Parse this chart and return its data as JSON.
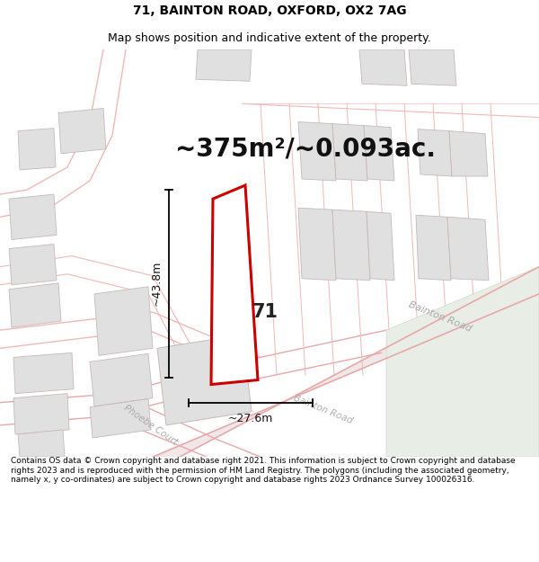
{
  "title": "71, BAINTON ROAD, OXFORD, OX2 7AG",
  "subtitle": "Map shows position and indicative extent of the property.",
  "area_label": "~375m²/~0.093ac.",
  "plot_number": "71",
  "dim_horizontal": "~27.6m",
  "dim_vertical": "~43.8m",
  "road_label_bainton": "Bainton Road",
  "road_label_bainton2": "Bainton Road",
  "road_label_phoebe": "Phoebe Court",
  "footer": "Contains OS data © Crown copyright and database right 2021. This information is subject to Crown copyright and database rights 2023 and is reproduced with the permission of HM Land Registry. The polygons (including the associated geometry, namely x, y co-ordinates) are subject to Crown copyright and database rights 2023 Ordnance Survey 100026316.",
  "map_bg": "#f7f3f3",
  "plot_outline_color": "#cc0000",
  "building_color": "#e0e0e0",
  "building_edge": "#c8b8b8",
  "road_line_color": "#f0b8b8",
  "road_line_color2": "#e8a8a8",
  "road_fill": "#f5eded",
  "green_fill": "#e8ede5",
  "title_fontsize": 10,
  "subtitle_fontsize": 9,
  "area_fontsize": 20,
  "footer_fontsize": 6.5
}
